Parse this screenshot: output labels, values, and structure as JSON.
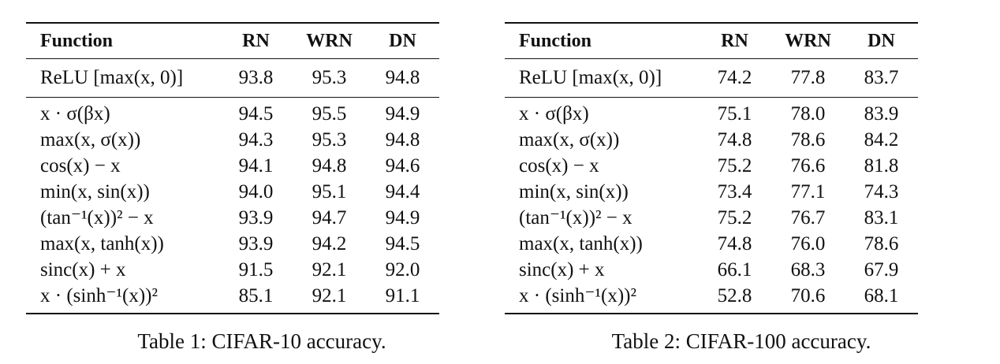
{
  "tables": [
    {
      "caption": "Table 1: CIFAR-10 accuracy.",
      "headers": [
        "Function",
        "RN",
        "WRN",
        "DN"
      ],
      "baseline": {
        "function": "ReLU [max(x, 0)]",
        "values": [
          "93.8",
          "95.3",
          "94.8"
        ]
      },
      "rows": [
        {
          "function": "x · σ(βx)",
          "values": [
            "94.5",
            "95.5",
            "94.9"
          ]
        },
        {
          "function": "max(x, σ(x))",
          "values": [
            "94.3",
            "95.3",
            "94.8"
          ]
        },
        {
          "function": "cos(x) − x",
          "values": [
            "94.1",
            "94.8",
            "94.6"
          ]
        },
        {
          "function": "min(x, sin(x))",
          "values": [
            "94.0",
            "95.1",
            "94.4"
          ]
        },
        {
          "function": "(tan⁻¹(x))² − x",
          "values": [
            "93.9",
            "94.7",
            "94.9"
          ]
        },
        {
          "function": "max(x, tanh(x))",
          "values": [
            "93.9",
            "94.2",
            "94.5"
          ]
        },
        {
          "function": "sinc(x) + x",
          "values": [
            "91.5",
            "92.1",
            "92.0"
          ]
        },
        {
          "function": "x · (sinh⁻¹(x))²",
          "values": [
            "85.1",
            "92.1",
            "91.1"
          ]
        }
      ]
    },
    {
      "caption": "Table 2: CIFAR-100 accuracy.",
      "headers": [
        "Function",
        "RN",
        "WRN",
        "DN"
      ],
      "baseline": {
        "function": "ReLU [max(x, 0)]",
        "values": [
          "74.2",
          "77.8",
          "83.7"
        ]
      },
      "rows": [
        {
          "function": "x · σ(βx)",
          "values": [
            "75.1",
            "78.0",
            "83.9"
          ]
        },
        {
          "function": "max(x, σ(x))",
          "values": [
            "74.8",
            "78.6",
            "84.2"
          ]
        },
        {
          "function": "cos(x) − x",
          "values": [
            "75.2",
            "76.6",
            "81.8"
          ]
        },
        {
          "function": "min(x, sin(x))",
          "values": [
            "73.4",
            "77.1",
            "74.3"
          ]
        },
        {
          "function": "(tan⁻¹(x))² − x",
          "values": [
            "75.2",
            "76.7",
            "83.1"
          ]
        },
        {
          "function": "max(x, tanh(x))",
          "values": [
            "74.8",
            "76.0",
            "78.6"
          ]
        },
        {
          "function": "sinc(x) + x",
          "values": [
            "66.1",
            "68.3",
            "67.9"
          ]
        },
        {
          "function": "x · (sinh⁻¹(x))²",
          "values": [
            "52.8",
            "70.6",
            "68.1"
          ]
        }
      ]
    }
  ]
}
